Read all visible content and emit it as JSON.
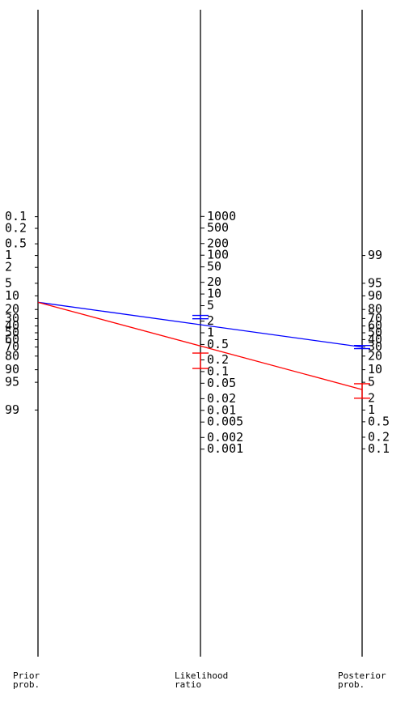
{
  "axis_titles": {
    "prior": [
      "Prior",
      "prob."
    ],
    "likelihood": [
      "Likelihood",
      "ratio"
    ],
    "posterior": [
      "Posterior",
      "prob."
    ]
  },
  "prior_ticks": [
    "0.1",
    "0.2",
    "0.5",
    "1",
    "2",
    "5",
    "10",
    "20",
    "30",
    "40",
    "50",
    "60",
    "70",
    "80",
    "90",
    "95",
    "99"
  ],
  "lr_ticks": [
    "1000",
    "500",
    "200",
    "100",
    "50",
    "20",
    "10",
    "5",
    "2",
    "1",
    "0.5",
    "0.2",
    "0.1",
    "0.05",
    "0.02",
    "0.01",
    "0.005",
    "0.002",
    "0.001"
  ],
  "posterior_ticks": [
    "99",
    "95",
    "90",
    "80",
    "70",
    "60",
    "50",
    "40",
    "30",
    "20",
    "10",
    "5",
    "2",
    "1",
    "0.5",
    "0.2",
    "0.1"
  ],
  "colors": {
    "axis": "#000000",
    "positive": "#0000ff",
    "negative": "#ff0000"
  },
  "chart_data": {
    "type": "nomogram",
    "prior_probability": 14,
    "lines": [
      {
        "color": "#0000ff",
        "likelihood_ratio": 2.5,
        "likelihood_ratio_ci": [
          2.3,
          2.8
        ],
        "posterior_probability": 30,
        "posterior_ci": [
          28,
          32
        ]
      },
      {
        "color": "#ff0000",
        "likelihood_ratio": 0.21,
        "likelihood_ratio_ci": [
          0.12,
          0.3
        ],
        "posterior_probability": 3.3,
        "posterior_ci": [
          2.0,
          4.6
        ]
      }
    ]
  }
}
